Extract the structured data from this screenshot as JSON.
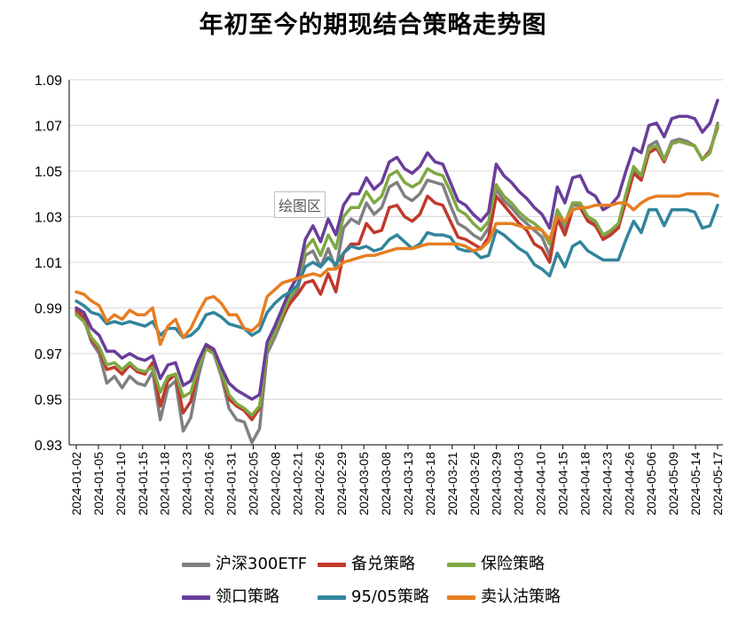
{
  "chart_data": {
    "type": "line",
    "title": "年初至今的期现结合策略走势图",
    "plot_area_label": "绘图区",
    "ylim": [
      0.93,
      1.09
    ],
    "yticks": [
      "0.93",
      "0.95",
      "0.97",
      "0.99",
      "1.01",
      "1.03",
      "1.05",
      "1.07",
      "1.09"
    ],
    "xtick_labels": [
      "2024-01-02",
      "2024-01-05",
      "2024-01-10",
      "2024-01-15",
      "2024-01-18",
      "2024-01-23",
      "2024-01-26",
      "2024-01-31",
      "2024-02-05",
      "2024-02-08",
      "2024-02-21",
      "2024-02-26",
      "2024-02-29",
      "2024-03-05",
      "2024-03-08",
      "2024-03-13",
      "2024-03-18",
      "2024-03-21",
      "2024-03-26",
      "2024-03-29",
      "2024-04-03",
      "2024-04-10",
      "2024-04-15",
      "2024-04-18",
      "2024-04-23",
      "2024-04-26",
      "2024-05-06",
      "2024-05-09",
      "2024-05-14",
      "2024-05-17"
    ],
    "grid": "horizontal",
    "legend_position": "bottom",
    "series": [
      {
        "name": "沪深300ETF",
        "color": "#808080",
        "values": [
          0.988,
          0.985,
          0.975,
          0.97,
          0.957,
          0.96,
          0.955,
          0.96,
          0.957,
          0.956,
          0.962,
          0.941,
          0.955,
          0.958,
          0.936,
          0.942,
          0.96,
          0.973,
          0.97,
          0.96,
          0.946,
          0.941,
          0.94,
          0.931,
          0.937,
          0.97,
          0.977,
          0.985,
          0.993,
          0.998,
          1.013,
          1.015,
          1.008,
          1.016,
          1.007,
          1.025,
          1.029,
          1.027,
          1.036,
          1.031,
          1.034,
          1.043,
          1.045,
          1.039,
          1.037,
          1.04,
          1.046,
          1.045,
          1.044,
          1.035,
          1.027,
          1.025,
          1.022,
          1.02,
          1.025,
          1.042,
          1.037,
          1.034,
          1.03,
          1.027,
          1.024,
          1.021,
          1.013,
          1.031,
          1.024,
          1.035,
          1.035,
          1.029,
          1.027,
          1.021,
          1.023,
          1.026,
          1.038,
          1.051,
          1.047,
          1.061,
          1.063,
          1.055,
          1.063,
          1.064,
          1.063,
          1.061,
          1.055,
          1.058,
          1.071
        ]
      },
      {
        "name": "备兑策略",
        "color": "#C0392B",
        "values": [
          0.989,
          0.986,
          0.976,
          0.972,
          0.963,
          0.964,
          0.961,
          0.965,
          0.962,
          0.961,
          0.966,
          0.947,
          0.958,
          0.961,
          0.944,
          0.949,
          0.964,
          0.973,
          0.971,
          0.962,
          0.95,
          0.947,
          0.945,
          0.941,
          0.946,
          0.972,
          0.979,
          0.986,
          0.992,
          0.996,
          1.001,
          1.002,
          0.996,
          1.005,
          0.997,
          1.014,
          1.018,
          1.018,
          1.027,
          1.023,
          1.024,
          1.034,
          1.035,
          1.03,
          1.028,
          1.031,
          1.039,
          1.036,
          1.035,
          1.028,
          1.021,
          1.02,
          1.018,
          1.016,
          1.021,
          1.039,
          1.035,
          1.031,
          1.027,
          1.024,
          1.018,
          1.016,
          1.01,
          1.029,
          1.022,
          1.033,
          1.034,
          1.028,
          1.026,
          1.02,
          1.022,
          1.025,
          1.037,
          1.049,
          1.046,
          1.058,
          1.06,
          1.054,
          1.062,
          1.063,
          1.062,
          1.061,
          1.055,
          1.059,
          1.069
        ]
      },
      {
        "name": "保险策略",
        "color": "#7FA843",
        "values": [
          0.987,
          0.984,
          0.977,
          0.973,
          0.965,
          0.966,
          0.963,
          0.966,
          0.963,
          0.962,
          0.964,
          0.953,
          0.96,
          0.961,
          0.951,
          0.953,
          0.964,
          0.972,
          0.97,
          0.962,
          0.952,
          0.948,
          0.946,
          0.943,
          0.947,
          0.972,
          0.979,
          0.987,
          0.995,
          1.0,
          1.016,
          1.02,
          1.013,
          1.022,
          1.016,
          1.03,
          1.034,
          1.034,
          1.041,
          1.036,
          1.039,
          1.048,
          1.05,
          1.045,
          1.043,
          1.045,
          1.051,
          1.049,
          1.048,
          1.041,
          1.033,
          1.031,
          1.027,
          1.024,
          1.028,
          1.044,
          1.039,
          1.036,
          1.032,
          1.029,
          1.027,
          1.024,
          1.018,
          1.033,
          1.027,
          1.036,
          1.036,
          1.03,
          1.028,
          1.022,
          1.024,
          1.027,
          1.04,
          1.052,
          1.048,
          1.06,
          1.061,
          1.055,
          1.062,
          1.063,
          1.062,
          1.061,
          1.055,
          1.058,
          1.07
        ]
      },
      {
        "name": "领口策略",
        "color": "#6A3D9A",
        "values": [
          0.99,
          0.988,
          0.981,
          0.978,
          0.971,
          0.971,
          0.968,
          0.97,
          0.968,
          0.967,
          0.969,
          0.959,
          0.965,
          0.966,
          0.956,
          0.958,
          0.967,
          0.974,
          0.972,
          0.964,
          0.957,
          0.954,
          0.952,
          0.95,
          0.952,
          0.975,
          0.982,
          0.99,
          0.998,
          1.004,
          1.02,
          1.026,
          1.019,
          1.029,
          1.022,
          1.035,
          1.04,
          1.04,
          1.047,
          1.042,
          1.045,
          1.054,
          1.056,
          1.051,
          1.049,
          1.052,
          1.058,
          1.054,
          1.053,
          1.045,
          1.037,
          1.035,
          1.031,
          1.028,
          1.032,
          1.053,
          1.048,
          1.045,
          1.041,
          1.038,
          1.034,
          1.031,
          1.025,
          1.043,
          1.036,
          1.047,
          1.048,
          1.041,
          1.039,
          1.033,
          1.035,
          1.039,
          1.05,
          1.06,
          1.058,
          1.07,
          1.071,
          1.065,
          1.073,
          1.074,
          1.074,
          1.073,
          1.067,
          1.071,
          1.081
        ]
      },
      {
        "name": "95/05策略",
        "color": "#31859C",
        "values": [
          0.993,
          0.991,
          0.988,
          0.987,
          0.983,
          0.984,
          0.983,
          0.984,
          0.983,
          0.982,
          0.984,
          0.978,
          0.981,
          0.981,
          0.977,
          0.978,
          0.981,
          0.987,
          0.988,
          0.986,
          0.983,
          0.982,
          0.981,
          0.978,
          0.98,
          0.988,
          0.992,
          0.995,
          0.997,
          1.0,
          1.008,
          1.01,
          1.008,
          1.012,
          1.009,
          1.014,
          1.017,
          1.016,
          1.017,
          1.015,
          1.016,
          1.02,
          1.022,
          1.019,
          1.016,
          1.018,
          1.023,
          1.022,
          1.022,
          1.021,
          1.016,
          1.015,
          1.015,
          1.012,
          1.013,
          1.024,
          1.022,
          1.019,
          1.016,
          1.014,
          1.009,
          1.007,
          1.004,
          1.014,
          1.008,
          1.017,
          1.019,
          1.015,
          1.013,
          1.011,
          1.011,
          1.011,
          1.02,
          1.028,
          1.023,
          1.033,
          1.033,
          1.026,
          1.033,
          1.033,
          1.033,
          1.032,
          1.025,
          1.026,
          1.035
        ]
      },
      {
        "name": "卖认沽策略",
        "color": "#E67E22",
        "values": [
          0.997,
          0.996,
          0.993,
          0.991,
          0.984,
          0.987,
          0.985,
          0.989,
          0.987,
          0.987,
          0.99,
          0.974,
          0.982,
          0.985,
          0.977,
          0.981,
          0.988,
          0.994,
          0.995,
          0.992,
          0.987,
          0.987,
          0.981,
          0.98,
          0.983,
          0.995,
          0.998,
          1.001,
          1.002,
          1.003,
          1.004,
          1.005,
          1.004,
          1.007,
          1.007,
          1.01,
          1.011,
          1.012,
          1.013,
          1.013,
          1.014,
          1.015,
          1.016,
          1.016,
          1.016,
          1.017,
          1.018,
          1.018,
          1.018,
          1.018,
          1.018,
          1.017,
          1.015,
          1.016,
          1.019,
          1.027,
          1.027,
          1.027,
          1.026,
          1.025,
          1.025,
          1.024,
          1.02,
          1.03,
          1.028,
          1.033,
          1.034,
          1.034,
          1.035,
          1.035,
          1.035,
          1.036,
          1.036,
          1.033,
          1.036,
          1.038,
          1.039,
          1.039,
          1.039,
          1.039,
          1.04,
          1.04,
          1.04,
          1.04,
          1.039
        ]
      }
    ]
  }
}
